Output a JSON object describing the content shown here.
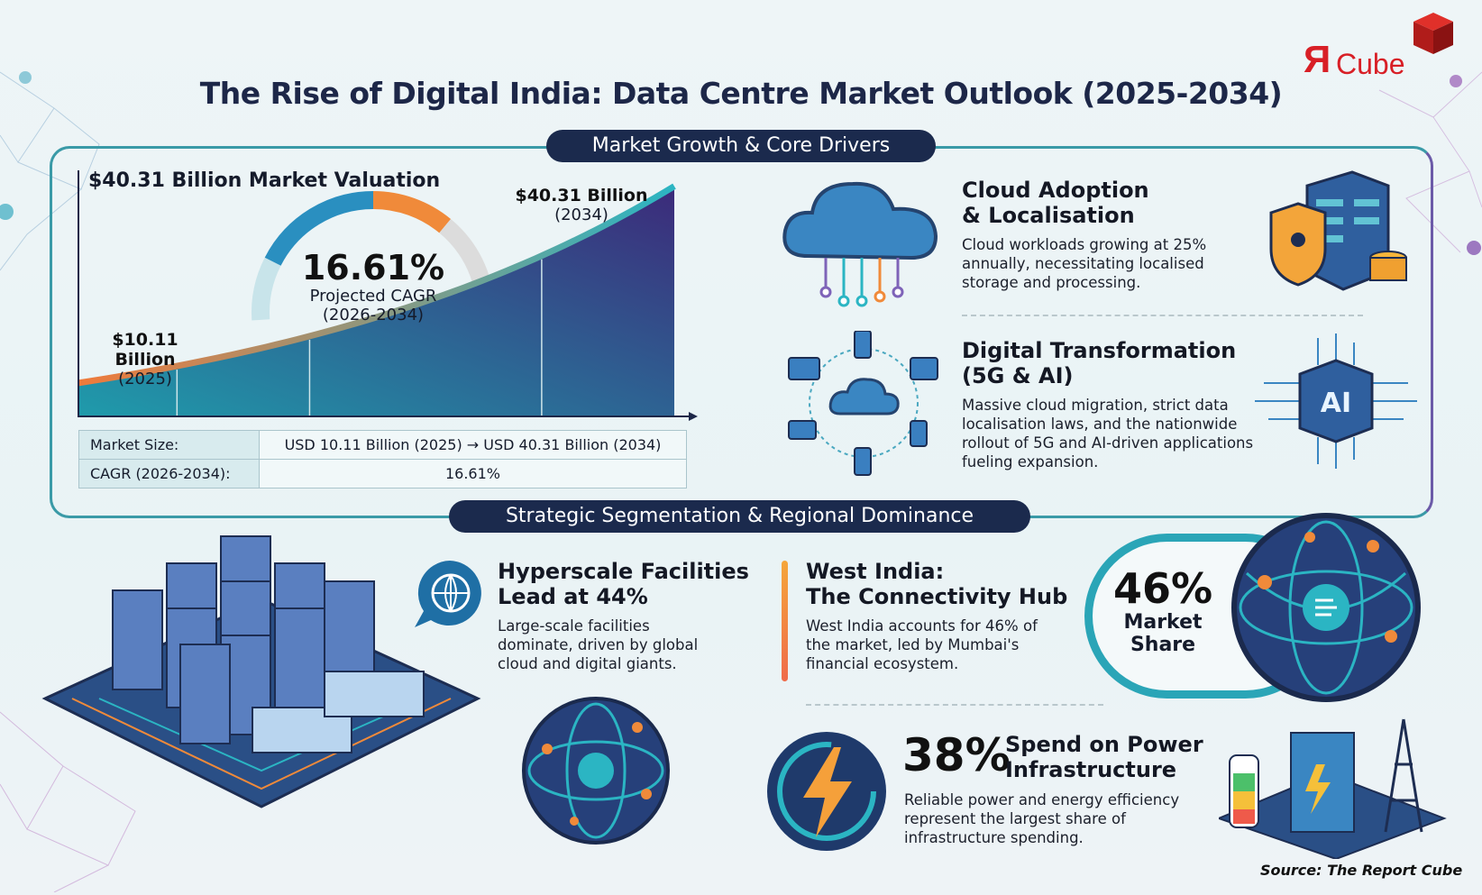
{
  "header": {
    "title": "The Rise of Digital India: Data Centre Market Outlook (2025-2034)",
    "logo_text": "ЯCube"
  },
  "sections": {
    "growth": "Market Growth & Core Drivers",
    "segmentation": "Strategic Segmentation & Regional Dominance"
  },
  "chart_data": {
    "type": "area",
    "title": "$40.31 Billion Market Valuation",
    "x": [
      2025,
      2034
    ],
    "series": [
      {
        "values": [
          10.11,
          40.31
        ]
      }
    ],
    "unit": "USD Billion",
    "labels": {
      "start_value": "$10.11 Billion",
      "start_year": "(2025)",
      "end_value": "$40.31 Billion",
      "end_year": "(2034)"
    },
    "cagr": {
      "value": "16.61%",
      "label": "Projected CAGR",
      "period": "(2026-2034)"
    },
    "colors": {
      "area_top": "#3c2a7a",
      "area_bottom": "#1f9bab",
      "line_start": "#f07a3a",
      "line_end": "#2bb5c3"
    }
  },
  "summary_table": {
    "rows": [
      {
        "label": "Market Size:",
        "value": "USD 10.11 Billion (2025) → USD 40.31 Billion (2034)"
      },
      {
        "label": "CAGR (2026-2034):",
        "value": "16.61%"
      }
    ]
  },
  "drivers": [
    {
      "title_1": "Cloud Adoption",
      "title_2": "& Localisation",
      "desc": "Cloud workloads growing at 25% annually, necessitating localised storage and processing."
    },
    {
      "title_1": "Digital Transformation",
      "title_2": "(5G & AI)",
      "desc": "Massive cloud migration, strict data localisation laws, and the nationwide rollout of 5G and AI-driven applications fueling expansion.",
      "chip_label": "AI"
    }
  ],
  "segments": {
    "hyperscale": {
      "title_1": "Hyperscale Facilities",
      "title_2": "Lead at 44%",
      "desc": "Large-scale facilities dominate, driven by global cloud and digital giants."
    },
    "west": {
      "title_1": "West India:",
      "title_2": "The Connectivity Hub",
      "desc": "West India accounts for 46% of the market, led by Mumbai's financial ecosystem."
    },
    "share": {
      "value": "46%",
      "label_1": "Market",
      "label_2": "Share"
    },
    "power": {
      "value": "38%",
      "title_1": "Spend on Power",
      "title_2": "Infrastructure",
      "desc": "Reliable power and energy efficiency represent the largest share of infrastructure spending."
    }
  },
  "footer": {
    "source": "Source: The Report Cube"
  }
}
